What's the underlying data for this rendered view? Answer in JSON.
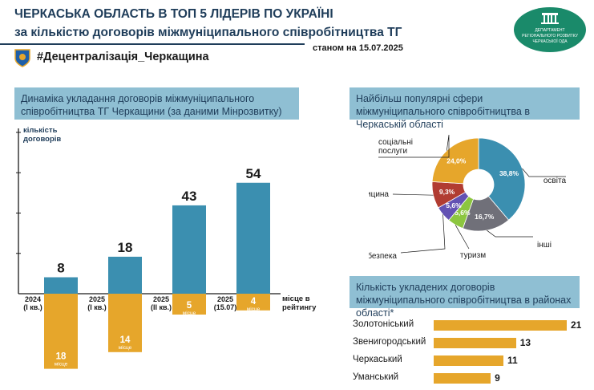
{
  "header": {
    "title_line1": "ЧЕРКАСЬКА ОБЛАСТЬ В ТОП 5 ЛІДЕРІВ ПО УКРАЇНІ",
    "title_line2": "за кількістю договорів міжмуніципального співробітництва ТГ",
    "hashtag": "#Децентралізація_Черкащина",
    "date": "станом на 15.07.2025",
    "logo_lines": [
      "ДЕПАРТАМЕНТ",
      "РЕГІОНАЛЬНОГО РОЗВИТКУ",
      "ЧЕРКАСЬКОЇ ОДА"
    ]
  },
  "colors": {
    "teal": "#3b8fb0",
    "orange": "#e6a62b",
    "red": "#b13c32",
    "purple": "#6352b3",
    "gray": "#707079",
    "green": "#8cc63f",
    "navy": "#1f3d5a",
    "panel": "#8fbfd3"
  },
  "panels": {
    "dynamics_title": "Динаміка укладання договорів міжмуніципального співробітництва ТГ Черкащини (за даними Мінрозвитку)",
    "spheres_title": "Найбільш популярні сфери міжмуніципального співробітництва в Черкаській області",
    "districts_title": "Кількість укладених договорів міжмуніципального співробітництва в районах області*"
  },
  "chart_data": [
    {
      "type": "bar",
      "ylabel": "кількість договорів",
      "xlabel": "місце в рейтингу",
      "categories": [
        "2024 (І кв.)",
        "2025 (І кв.)",
        "2025 (ІІ кв.)",
        "2025 (15.07)"
      ],
      "category_lines": [
        [
          "2024",
          "(І кв.)"
        ],
        [
          "2025",
          "(І кв.)"
        ],
        [
          "2025",
          "(ІІ кв.)"
        ],
        [
          "2025",
          "(15.07)"
        ]
      ],
      "series": [
        {
          "name": "кількість договорів",
          "values": [
            8,
            18,
            43,
            54
          ],
          "color": "#3b8fb0"
        },
        {
          "name": "місце в рейтингу",
          "values": [
            18,
            14,
            5,
            4
          ],
          "unit": "місце",
          "color": "#e6a62b"
        }
      ]
    },
    {
      "type": "pie",
      "donut": true,
      "slices": [
        {
          "label": "освіта",
          "value": 38.8,
          "text": "38,8%",
          "color": "#3b8fb0"
        },
        {
          "label": "інші",
          "value": 16.7,
          "text": "16,7%",
          "color": "#707079"
        },
        {
          "label": "туризм",
          "value": 5.6,
          "text": "5,6%",
          "color": "#8cc63f"
        },
        {
          "label": "безпека",
          "value": 5.6,
          "text": "5,6%",
          "color": "#6352b3"
        },
        {
          "label": "медицина",
          "value": 9.3,
          "text": "9,3%",
          "color": "#b13c32"
        },
        {
          "label": "соціальні послуги",
          "label_lines": [
            "соціальні",
            "послуги"
          ],
          "value": 24.0,
          "text": "24,0%",
          "color": "#e6a62b"
        }
      ]
    },
    {
      "type": "bar",
      "orientation": "horizontal",
      "categories": [
        "Золотоніський",
        "Звенигородський",
        "Черкаський",
        "Уманський"
      ],
      "values": [
        21,
        13,
        11,
        9
      ],
      "color": "#e6a62b"
    }
  ]
}
